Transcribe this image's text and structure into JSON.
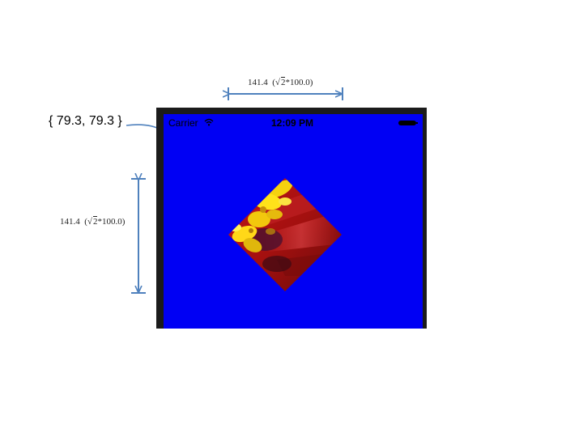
{
  "annotations": {
    "width_label": {
      "value": "141.4",
      "formula_prefix": "(",
      "sqrt_arg": "2",
      "formula_suffix": "*100.0)"
    },
    "height_label": {
      "value": "141.4",
      "formula_prefix": "(",
      "sqrt_arg": "2",
      "formula_suffix": "*100.0)"
    },
    "center_coord": "{ 79.3, 79.3 }"
  },
  "status_bar": {
    "carrier": "Carrier",
    "time": "12:09 PM"
  },
  "icons": {
    "wifi": "wifi-icon",
    "battery": "battery-icon"
  },
  "colors": {
    "screen_background": "#0000f4",
    "device_frame": "#1b1b1b",
    "annotation_arrow": "#4f81bd"
  }
}
